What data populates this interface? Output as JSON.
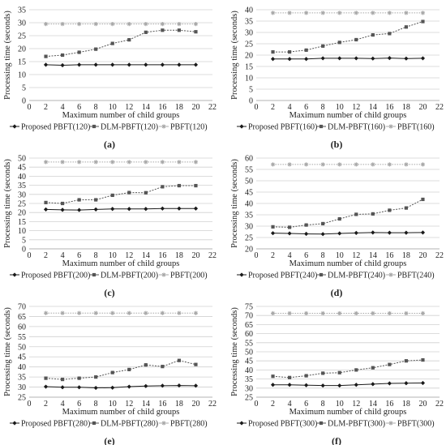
{
  "colors": {
    "proposed": "#1a1a1a",
    "dlm": "#555555",
    "pbft": "#a8a8a8",
    "grid": "#d0d0d0",
    "axis": "#9a9a9a"
  },
  "chart_data": [
    {
      "type": "line",
      "panel_label": "(a)",
      "xlabel": "Maximum number of child groups",
      "ylabel": "Processing time (seconds)",
      "xlim": [
        0,
        22
      ],
      "ylim": [
        0,
        35
      ],
      "xticks": [
        0,
        2,
        4,
        6,
        8,
        10,
        12,
        14,
        16,
        18,
        20,
        22
      ],
      "yticks": [
        0,
        5,
        10,
        15,
        20,
        25,
        30,
        35
      ],
      "grid": true,
      "legend_position": "bottom",
      "x": [
        2,
        4,
        6,
        8,
        10,
        12,
        14,
        16,
        18,
        20
      ],
      "series": [
        {
          "name": "Proposed PBFT(120)",
          "values": [
            13.8,
            13.6,
            13.8,
            13.8,
            13.8,
            13.8,
            13.8,
            13.8,
            13.8,
            13.8
          ]
        },
        {
          "name": "DLM-PBFT(120)",
          "values": [
            17.0,
            17.5,
            18.6,
            19.8,
            22.0,
            23.4,
            26.3,
            27.1,
            27.1,
            26.5
          ]
        },
        {
          "name": "PBFT(120)",
          "values": [
            29.5,
            29.5,
            29.5,
            29.5,
            29.5,
            29.5,
            29.5,
            29.5,
            29.5,
            29.5
          ]
        }
      ]
    },
    {
      "type": "line",
      "panel_label": "(b)",
      "xlabel": "Maximum number of child groups",
      "ylabel": "Processing time (seconds)",
      "xlim": [
        0,
        22
      ],
      "ylim": [
        0,
        40
      ],
      "xticks": [
        0,
        2,
        4,
        6,
        8,
        10,
        12,
        14,
        16,
        18,
        20,
        22
      ],
      "yticks": [
        0,
        5,
        10,
        15,
        20,
        25,
        30,
        35,
        40
      ],
      "grid": true,
      "legend_position": "bottom",
      "x": [
        2,
        4,
        6,
        8,
        10,
        12,
        14,
        16,
        18,
        20
      ],
      "series": [
        {
          "name": "Proposed PBFT(160)",
          "values": [
            18.3,
            18.3,
            18.3,
            18.6,
            18.6,
            18.6,
            18.5,
            18.7,
            18.5,
            18.6
          ]
        },
        {
          "name": "DLM-PBFT(160)",
          "values": [
            21.4,
            21.4,
            22.2,
            24.0,
            25.6,
            26.8,
            28.9,
            29.5,
            32.4,
            34.8
          ]
        },
        {
          "name": "PBFT(160)",
          "values": [
            38.6,
            38.6,
            38.6,
            38.6,
            38.6,
            38.6,
            38.6,
            38.6,
            38.6,
            38.6
          ]
        }
      ]
    },
    {
      "type": "line",
      "panel_label": "(c)",
      "xlabel": "Maximum number of child groups",
      "ylabel": "Processing time (seconds)",
      "xlim": [
        0,
        22
      ],
      "ylim": [
        0,
        50
      ],
      "xticks": [
        0,
        2,
        4,
        6,
        8,
        10,
        12,
        14,
        16,
        18,
        20,
        22
      ],
      "yticks": [
        0,
        5,
        10,
        15,
        20,
        25,
        30,
        35,
        40,
        45,
        50
      ],
      "grid": true,
      "legend_position": "bottom",
      "x": [
        2,
        4,
        6,
        8,
        10,
        12,
        14,
        16,
        18,
        20
      ],
      "series": [
        {
          "name": "Proposed PBFT(200)",
          "values": [
            21.7,
            21.5,
            21.4,
            21.7,
            22.0,
            22.0,
            22.0,
            22.2,
            22.2,
            22.2
          ]
        },
        {
          "name": "DLM-PBFT(200)",
          "values": [
            25.5,
            25.0,
            27.0,
            27.0,
            29.5,
            31.0,
            30.9,
            34.2,
            34.8,
            34.8
          ]
        },
        {
          "name": "PBFT(200)",
          "values": [
            47.8,
            47.8,
            47.8,
            47.8,
            47.8,
            47.8,
            47.8,
            47.8,
            47.8,
            47.8
          ]
        }
      ]
    },
    {
      "type": "line",
      "panel_label": "(d)",
      "xlabel": "Maximum number of child groups",
      "ylabel": "Processing time (seconds)",
      "xlim": [
        0,
        22
      ],
      "ylim": [
        20,
        60
      ],
      "xticks": [
        0,
        2,
        4,
        6,
        8,
        10,
        12,
        14,
        16,
        18,
        20,
        22
      ],
      "yticks": [
        20,
        25,
        30,
        35,
        40,
        45,
        50,
        55,
        60
      ],
      "grid": true,
      "legend_position": "bottom",
      "x": [
        2,
        4,
        6,
        8,
        10,
        12,
        14,
        16,
        18,
        20
      ],
      "series": [
        {
          "name": "Proposed PBFT(240)",
          "values": [
            26.9,
            26.8,
            26.6,
            26.5,
            26.8,
            27.0,
            27.2,
            27.1,
            27.1,
            27.2
          ]
        },
        {
          "name": "DLM-PBFT(240)",
          "values": [
            29.7,
            29.5,
            30.5,
            31.1,
            33.2,
            35.2,
            35.4,
            37.0,
            38.0,
            41.8
          ]
        },
        {
          "name": "PBFT(240)",
          "values": [
            57.2,
            57.2,
            57.2,
            57.2,
            57.2,
            57.2,
            57.2,
            57.2,
            57.2,
            57.2
          ]
        }
      ]
    },
    {
      "type": "line",
      "panel_label": "(e)",
      "xlabel": "Maximum number of child groups",
      "ylabel": "Processing time (seconds)",
      "xlim": [
        0,
        22
      ],
      "ylim": [
        25,
        70
      ],
      "xticks": [
        0,
        2,
        4,
        6,
        8,
        10,
        12,
        14,
        16,
        18,
        20,
        22
      ],
      "yticks": [
        25,
        30,
        35,
        40,
        45,
        50,
        55,
        60,
        65,
        70
      ],
      "grid": true,
      "legend_position": "bottom",
      "x": [
        2,
        4,
        6,
        8,
        10,
        12,
        14,
        16,
        18,
        20
      ],
      "series": [
        {
          "name": "Proposed PBFT(280)",
          "values": [
            30.2,
            29.9,
            29.9,
            29.6,
            29.7,
            30.2,
            30.5,
            30.7,
            30.8,
            30.7
          ]
        },
        {
          "name": "DLM-PBFT(280)",
          "values": [
            34.4,
            33.8,
            34.4,
            35.0,
            37.2,
            38.7,
            41.0,
            40.2,
            43.2,
            41.2
          ]
        },
        {
          "name": "PBFT(280)",
          "values": [
            66.7,
            66.7,
            66.7,
            66.7,
            66.7,
            66.7,
            66.7,
            66.7,
            66.7,
            66.7
          ]
        }
      ]
    },
    {
      "type": "line",
      "panel_label": "(f)",
      "xlabel": "Maximum number of child groups",
      "ylabel": "Processing time (seconds)",
      "xlim": [
        0,
        22
      ],
      "ylim": [
        25,
        75
      ],
      "xticks": [
        0,
        2,
        4,
        6,
        8,
        10,
        12,
        14,
        16,
        18,
        20,
        22
      ],
      "yticks": [
        25,
        30,
        35,
        40,
        45,
        50,
        55,
        60,
        65,
        70,
        75
      ],
      "grid": true,
      "legend_position": "bottom",
      "x": [
        2,
        4,
        6,
        8,
        10,
        12,
        14,
        16,
        18,
        20
      ],
      "series": [
        {
          "name": "Proposed PBFT(300)",
          "values": [
            31.8,
            31.8,
            31.6,
            31.4,
            31.4,
            31.8,
            32.2,
            32.6,
            32.7,
            32.8
          ]
        },
        {
          "name": "DLM-PBFT(300)",
          "values": [
            36.5,
            35.8,
            36.8,
            38.2,
            38.5,
            40.0,
            41.2,
            43.0,
            45.0,
            45.5
          ]
        },
        {
          "name": "PBFT(300)",
          "values": [
            71.2,
            71.2,
            71.2,
            71.2,
            71.2,
            71.2,
            71.2,
            71.2,
            71.2,
            71.2
          ]
        }
      ]
    }
  ]
}
